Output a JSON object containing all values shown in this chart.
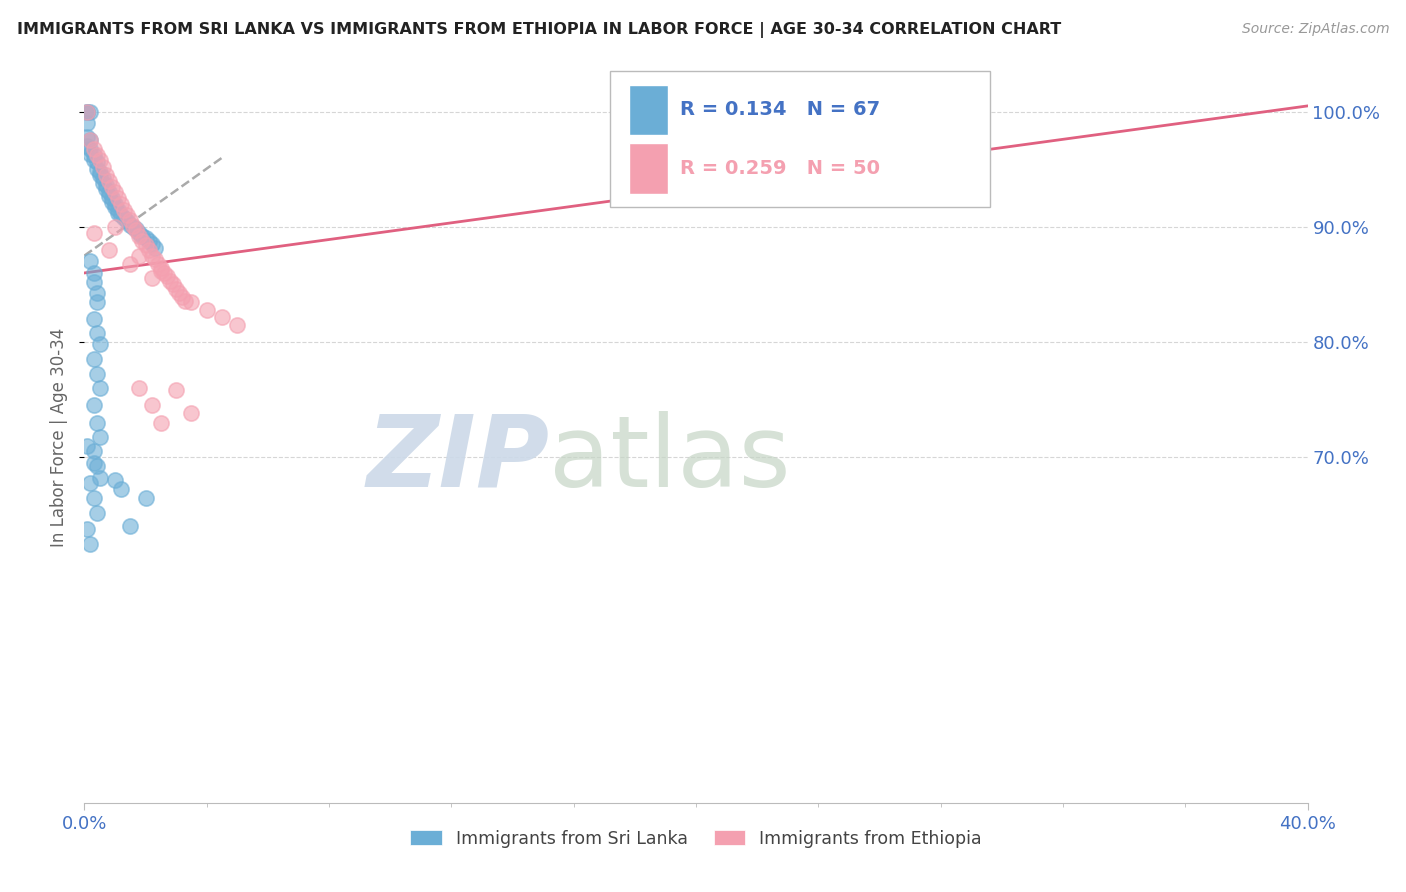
{
  "title": "IMMIGRANTS FROM SRI LANKA VS IMMIGRANTS FROM ETHIOPIA IN LABOR FORCE | AGE 30-34 CORRELATION CHART",
  "source": "Source: ZipAtlas.com",
  "xlabel": "",
  "ylabel": "In Labor Force | Age 30-34",
  "x_min": 0.0,
  "x_max": 0.4,
  "y_min": 0.4,
  "y_max": 1.035,
  "x_ticks": [
    0.0,
    0.4
  ],
  "x_tick_labels": [
    "0.0%",
    "40.0%"
  ],
  "y_ticks": [
    0.7,
    0.8,
    0.9,
    1.0
  ],
  "y_tick_labels": [
    "70.0%",
    "80.0%",
    "90.0%",
    "100.0%"
  ],
  "sri_lanka_color": "#6baed6",
  "ethiopia_color": "#f4a0b0",
  "sri_lanka_R": 0.134,
  "sri_lanka_N": 67,
  "ethiopia_R": 0.259,
  "ethiopia_N": 50,
  "legend_label_1": "Immigrants from Sri Lanka",
  "legend_label_2": "Immigrants from Ethiopia",
  "watermark_zip": "ZIP",
  "watermark_atlas": "atlas",
  "background_color": "#ffffff",
  "grid_color": "#cccccc",
  "title_color": "#222222",
  "axis_label_color": "#4472c4",
  "sl_line_color": "#4472c4",
  "eth_line_color": "#e06080",
  "sl_line_x": [
    0.0,
    0.045
  ],
  "sl_line_y": [
    0.875,
    0.96
  ],
  "eth_line_x": [
    0.0,
    0.4
  ],
  "eth_line_y": [
    0.86,
    1.005
  ],
  "sl_scatter": [
    [
      0.001,
      1.0
    ],
    [
      0.001,
      1.0
    ],
    [
      0.002,
      1.0
    ],
    [
      0.001,
      0.99
    ],
    [
      0.001,
      0.978
    ],
    [
      0.001,
      0.97
    ],
    [
      0.002,
      0.975
    ],
    [
      0.002,
      0.968
    ],
    [
      0.002,
      0.963
    ],
    [
      0.003,
      0.962
    ],
    [
      0.003,
      0.958
    ],
    [
      0.004,
      0.956
    ],
    [
      0.004,
      0.95
    ],
    [
      0.005,
      0.948
    ],
    [
      0.005,
      0.945
    ],
    [
      0.006,
      0.942
    ],
    [
      0.006,
      0.938
    ],
    [
      0.007,
      0.936
    ],
    [
      0.007,
      0.933
    ],
    [
      0.008,
      0.93
    ],
    [
      0.008,
      0.927
    ],
    [
      0.009,
      0.925
    ],
    [
      0.009,
      0.922
    ],
    [
      0.01,
      0.92
    ],
    [
      0.01,
      0.917
    ],
    [
      0.011,
      0.915
    ],
    [
      0.011,
      0.912
    ],
    [
      0.012,
      0.91
    ],
    [
      0.013,
      0.908
    ],
    [
      0.014,
      0.905
    ],
    [
      0.015,
      0.902
    ],
    [
      0.016,
      0.9
    ],
    [
      0.017,
      0.898
    ],
    [
      0.018,
      0.895
    ],
    [
      0.019,
      0.892
    ],
    [
      0.02,
      0.89
    ],
    [
      0.021,
      0.888
    ],
    [
      0.022,
      0.885
    ],
    [
      0.023,
      0.882
    ],
    [
      0.002,
      0.87
    ],
    [
      0.003,
      0.86
    ],
    [
      0.003,
      0.852
    ],
    [
      0.004,
      0.843
    ],
    [
      0.004,
      0.835
    ],
    [
      0.003,
      0.82
    ],
    [
      0.004,
      0.808
    ],
    [
      0.005,
      0.798
    ],
    [
      0.003,
      0.785
    ],
    [
      0.004,
      0.772
    ],
    [
      0.005,
      0.76
    ],
    [
      0.003,
      0.745
    ],
    [
      0.004,
      0.73
    ],
    [
      0.005,
      0.718
    ],
    [
      0.003,
      0.705
    ],
    [
      0.004,
      0.692
    ],
    [
      0.002,
      0.678
    ],
    [
      0.003,
      0.665
    ],
    [
      0.004,
      0.652
    ],
    [
      0.001,
      0.638
    ],
    [
      0.002,
      0.625
    ],
    [
      0.015,
      0.64
    ],
    [
      0.001,
      0.71
    ],
    [
      0.003,
      0.695
    ],
    [
      0.005,
      0.682
    ],
    [
      0.01,
      0.68
    ],
    [
      0.012,
      0.672
    ],
    [
      0.02,
      0.665
    ]
  ],
  "eth_scatter": [
    [
      0.001,
      1.0
    ],
    [
      0.002,
      0.975
    ],
    [
      0.003,
      0.968
    ],
    [
      0.004,
      0.962
    ],
    [
      0.005,
      0.958
    ],
    [
      0.006,
      0.952
    ],
    [
      0.007,
      0.945
    ],
    [
      0.008,
      0.94
    ],
    [
      0.009,
      0.935
    ],
    [
      0.01,
      0.93
    ],
    [
      0.011,
      0.925
    ],
    [
      0.012,
      0.92
    ],
    [
      0.013,
      0.915
    ],
    [
      0.014,
      0.91
    ],
    [
      0.015,
      0.906
    ],
    [
      0.016,
      0.901
    ],
    [
      0.017,
      0.897
    ],
    [
      0.018,
      0.892
    ],
    [
      0.019,
      0.888
    ],
    [
      0.02,
      0.884
    ],
    [
      0.021,
      0.88
    ],
    [
      0.022,
      0.875
    ],
    [
      0.023,
      0.872
    ],
    [
      0.024,
      0.868
    ],
    [
      0.025,
      0.864
    ],
    [
      0.026,
      0.86
    ],
    [
      0.027,
      0.857
    ],
    [
      0.028,
      0.853
    ],
    [
      0.029,
      0.85
    ],
    [
      0.03,
      0.846
    ],
    [
      0.031,
      0.843
    ],
    [
      0.032,
      0.839
    ],
    [
      0.033,
      0.836
    ],
    [
      0.003,
      0.895
    ],
    [
      0.008,
      0.88
    ],
    [
      0.015,
      0.868
    ],
    [
      0.022,
      0.856
    ],
    [
      0.01,
      0.9
    ],
    [
      0.018,
      0.875
    ],
    [
      0.025,
      0.862
    ],
    [
      0.035,
      0.835
    ],
    [
      0.04,
      0.828
    ],
    [
      0.045,
      0.822
    ],
    [
      0.05,
      0.815
    ],
    [
      0.018,
      0.76
    ],
    [
      0.03,
      0.758
    ],
    [
      0.022,
      0.745
    ],
    [
      0.035,
      0.738
    ],
    [
      0.18,
      1.002
    ],
    [
      0.025,
      0.73
    ]
  ]
}
